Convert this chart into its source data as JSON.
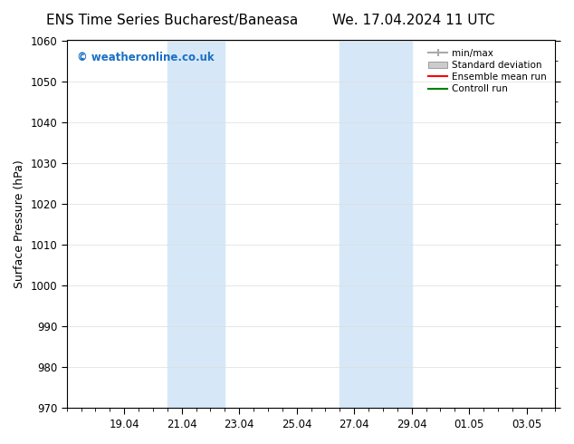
{
  "title_left": "ENS Time Series Bucharest/Baneasa",
  "title_right": "We. 17.04.2024 11 UTC",
  "ylabel": "Surface Pressure (hPa)",
  "ylim": [
    970,
    1060
  ],
  "yticks": [
    970,
    980,
    990,
    1000,
    1010,
    1020,
    1030,
    1040,
    1050,
    1060
  ],
  "x_tick_labels": [
    "19.04",
    "21.04",
    "23.04",
    "25.04",
    "27.04",
    "29.04",
    "01.05",
    "03.05"
  ],
  "x_tick_positions": [
    2,
    4,
    6,
    8,
    10,
    12,
    14,
    16
  ],
  "x_lim": [
    0,
    17
  ],
  "shaded_bands": [
    {
      "x_start": 3.5,
      "x_end": 5.5
    },
    {
      "x_start": 9.5,
      "x_end": 12.0
    }
  ],
  "shaded_color": "#d6e8f7",
  "watermark_text": "© weatheronline.co.uk",
  "watermark_color": "#1a6fc4",
  "legend_entries": [
    {
      "label": "min/max",
      "color": "#aaaaaa",
      "style": "minmax"
    },
    {
      "label": "Standard deviation",
      "color": "#cccccc",
      "style": "stddev"
    },
    {
      "label": "Ensemble mean run",
      "color": "red",
      "style": "line"
    },
    {
      "label": "Controll run",
      "color": "green",
      "style": "line"
    }
  ],
  "bg_color": "#ffffff",
  "grid_color": "#dddddd",
  "title_fontsize": 11,
  "axis_label_fontsize": 9,
  "tick_fontsize": 8.5,
  "watermark_fontsize": 8.5,
  "legend_fontsize": 7.5
}
